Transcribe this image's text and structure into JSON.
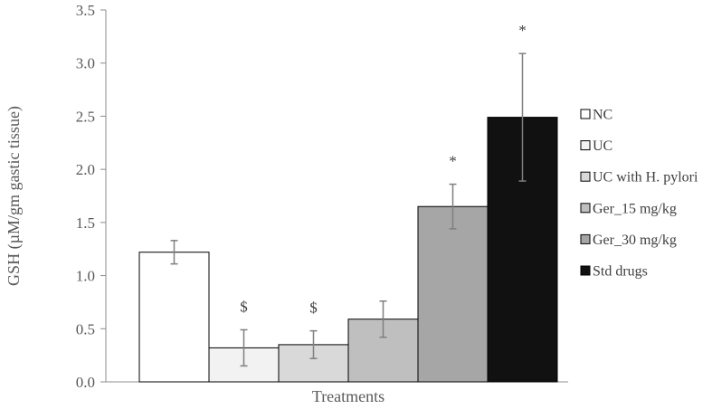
{
  "chart_data": {
    "type": "bar",
    "title": "",
    "xlabel": "Treatments",
    "ylabel": "GSH (µM/gm gastic tissue)",
    "ylim": [
      0,
      3.5
    ],
    "yticks": [
      "0.0",
      "0.5",
      "1.0",
      "1.5",
      "2.0",
      "2.5",
      "3.0",
      "3.5"
    ],
    "grid": false,
    "legend_position": "right",
    "series": [
      {
        "name": "NC",
        "value": 1.22,
        "error": 0.11,
        "color": "#ffffff",
        "annotation": ""
      },
      {
        "name": "UC",
        "value": 0.32,
        "error": 0.17,
        "color": "#f2f2f2",
        "annotation": "$"
      },
      {
        "name": "UC with H. pylori",
        "value": 0.35,
        "error": 0.13,
        "color": "#d9d9d9",
        "annotation": "$"
      },
      {
        "name": "Ger_15 mg/kg",
        "value": 0.59,
        "error": 0.17,
        "color": "#bfbfbf",
        "annotation": ""
      },
      {
        "name": "Ger_30 mg/kg",
        "value": 1.65,
        "error": 0.21,
        "color": "#a6a6a6",
        "annotation": "*"
      },
      {
        "name": "Std drugs",
        "value": 2.49,
        "error": 0.6,
        "color": "#111111",
        "annotation": "*"
      }
    ]
  }
}
